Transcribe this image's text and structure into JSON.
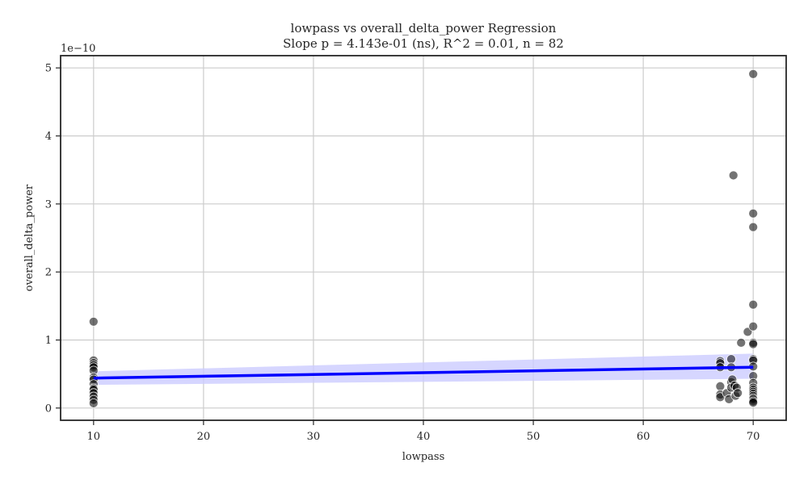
{
  "chart_data": {
    "type": "scatter",
    "title": "lowpass vs overall_delta_power Regression",
    "subtitle": "Slope p = 4.143e-01 (ns), R^2 = 0.01, n = 82",
    "xlabel": "lowpass",
    "ylabel": "overall_delta_power",
    "y_offset_label": "1e−10",
    "xlim": [
      7,
      73
    ],
    "ylim": [
      -0.18,
      5.18
    ],
    "xticks": [
      10,
      20,
      30,
      40,
      50,
      60,
      70
    ],
    "yticks": [
      0,
      1,
      2,
      3,
      4,
      5
    ],
    "grid": true,
    "colors": {
      "points": "#000000",
      "regression_line": "#0000ff",
      "confidence_band": "#ccccff"
    },
    "regression": {
      "x": [
        10,
        70
      ],
      "y": [
        0.44,
        0.6
      ],
      "ci_lower": [
        0.34,
        0.43
      ],
      "ci_upper": [
        0.54,
        0.8
      ]
    },
    "points": [
      [
        10,
        1.27
      ],
      [
        10,
        0.7
      ],
      [
        10,
        0.66
      ],
      [
        10,
        0.63
      ],
      [
        10,
        0.6
      ],
      [
        10,
        0.55
      ],
      [
        10,
        0.45
      ],
      [
        10,
        0.42
      ],
      [
        10,
        0.35
      ],
      [
        10,
        0.29
      ],
      [
        10,
        0.27
      ],
      [
        10,
        0.22
      ],
      [
        10,
        0.17
      ],
      [
        10,
        0.12
      ],
      [
        10,
        0.07
      ],
      [
        67,
        0.69
      ],
      [
        67,
        0.66
      ],
      [
        67,
        0.6
      ],
      [
        67,
        0.32
      ],
      [
        67,
        0.2
      ],
      [
        67,
        0.16
      ],
      [
        67.6,
        0.22
      ],
      [
        67.8,
        0.13
      ],
      [
        68,
        0.72
      ],
      [
        68,
        0.6
      ],
      [
        68,
        0.38
      ],
      [
        68,
        0.3
      ],
      [
        68.1,
        0.42
      ],
      [
        68.2,
        3.42
      ],
      [
        68.3,
        0.33
      ],
      [
        68.4,
        0.18
      ],
      [
        68.5,
        0.3
      ],
      [
        68.6,
        0.22
      ],
      [
        68.9,
        0.96
      ],
      [
        69.5,
        1.12
      ],
      [
        70,
        4.91
      ],
      [
        70,
        2.86
      ],
      [
        70,
        2.66
      ],
      [
        70,
        1.52
      ],
      [
        70,
        1.2
      ],
      [
        70,
        0.96
      ],
      [
        70,
        0.94
      ],
      [
        70,
        0.72
      ],
      [
        70,
        0.7
      ],
      [
        70,
        0.61
      ],
      [
        70,
        0.47
      ],
      [
        70,
        0.37
      ],
      [
        70,
        0.3
      ],
      [
        70,
        0.27
      ],
      [
        70,
        0.24
      ],
      [
        70,
        0.21
      ],
      [
        70,
        0.18
      ],
      [
        70,
        0.15
      ],
      [
        70,
        0.13
      ],
      [
        70,
        0.1
      ],
      [
        70,
        0.08
      ]
    ]
  }
}
